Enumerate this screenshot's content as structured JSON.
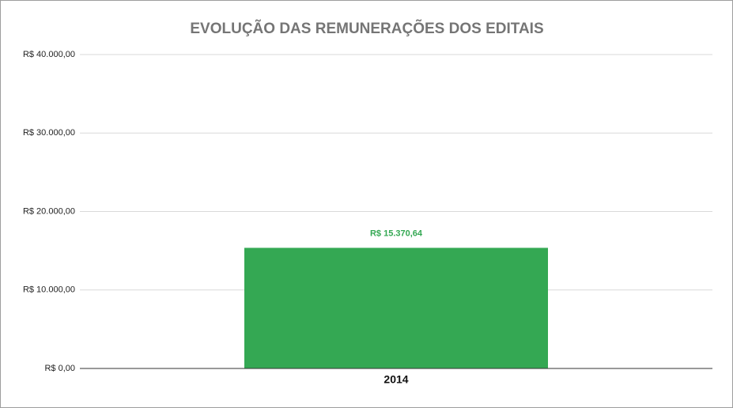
{
  "chart_data": {
    "type": "bar",
    "title": "EVOLUÇÃO DAS REMUNERAÇÕES DOS EDITAIS",
    "categories": [
      "2014"
    ],
    "values": [
      15370.64
    ],
    "value_labels": [
      "R$ 15.370,64"
    ],
    "color": "#34a853",
    "ylim": [
      0,
      40000
    ],
    "yticks": [
      {
        "value": 0,
        "label": "R$ 0,00"
      },
      {
        "value": 10000,
        "label": "R$ 10.000,00"
      },
      {
        "value": 20000,
        "label": "R$ 20.000,00"
      },
      {
        "value": 30000,
        "label": "R$ 30.000,00"
      },
      {
        "value": 40000,
        "label": "R$ 40.000,00"
      }
    ],
    "grid": true
  }
}
